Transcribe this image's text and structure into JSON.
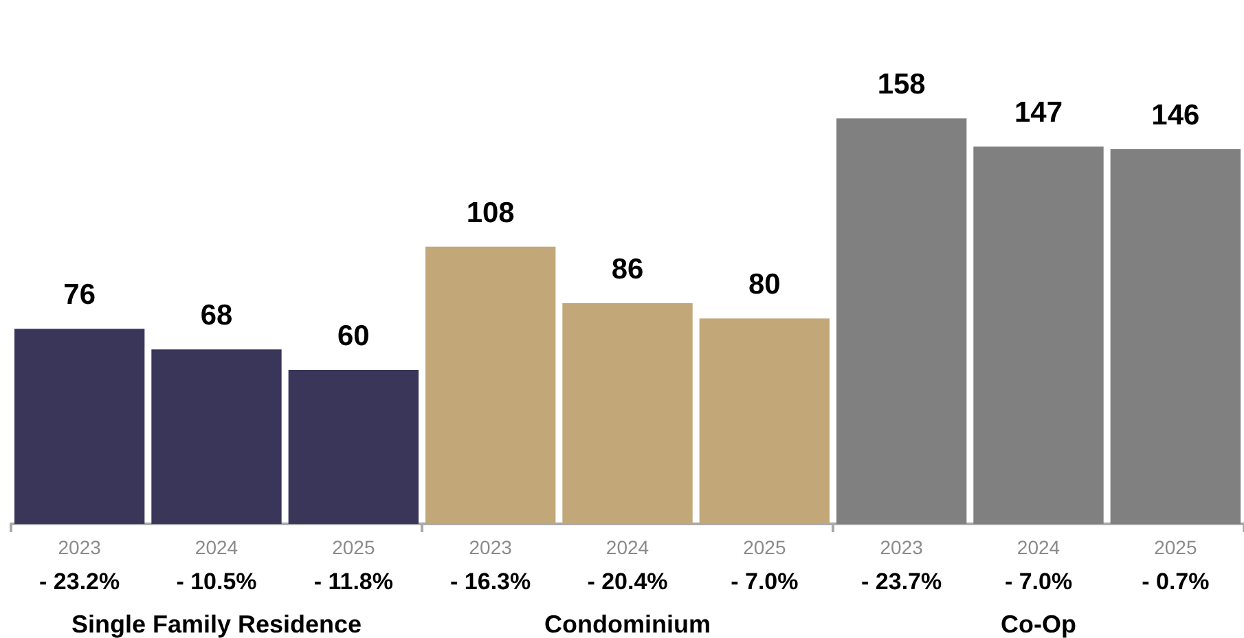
{
  "chart_data": {
    "type": "bar",
    "categories": [
      "2023",
      "2024",
      "2025",
      "2023",
      "2024",
      "2025",
      "2023",
      "2024",
      "2025"
    ],
    "values": [
      76,
      68,
      60,
      108,
      86,
      80,
      158,
      147,
      146
    ],
    "colors": [
      "#3a3659",
      "#3a3659",
      "#3a3659",
      "#c2a878",
      "#c2a878",
      "#c2a878",
      "#808080",
      "#808080",
      "#808080"
    ],
    "data_labels": true,
    "annotations": [
      "- 23.2%",
      "- 10.5%",
      "- 11.8%",
      "- 16.3%",
      "- 20.4%",
      "- 7.0%",
      "- 23.7%",
      "- 7.0%",
      "- 0.7%",
      "Single Family Residence",
      "Condominium",
      "Co-Op"
    ]
  }
}
